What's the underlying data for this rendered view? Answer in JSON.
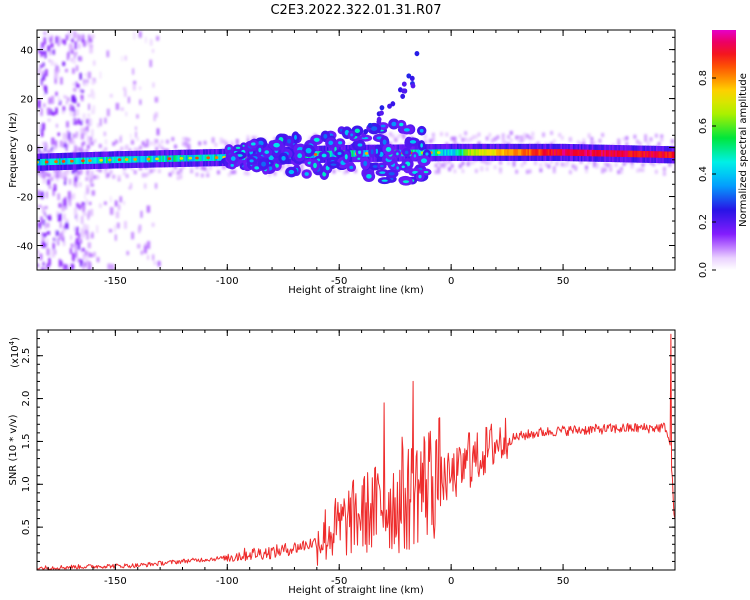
{
  "title": "C2E3.2022.322.01.31.R07",
  "colors": {
    "snr_line": "#ee2b2b",
    "background": "#ffffff"
  },
  "chart_data": [
    {
      "type": "heatmap",
      "xlabel": "Height of straight line (km)",
      "ylabel": "Frequency (Hz)",
      "xlim": [
        -185,
        100
      ],
      "ylim": [
        -50,
        48
      ],
      "xticks": [
        -150,
        -100,
        -50,
        0,
        50
      ],
      "yticks": [
        -40,
        -20,
        0,
        20,
        40
      ],
      "colorbar": {
        "label": "Normalized spectral amplitude",
        "range": [
          0.0,
          1.0
        ],
        "ticks": [
          0.0,
          0.2,
          0.4,
          0.6,
          0.8
        ],
        "colormap": "rainbow (white-purple-blue-cyan-green-yellow-red-magenta)"
      },
      "features": {
        "main_track": {
          "x": [
            -185,
            -150,
            -100,
            -50,
            0,
            50,
            100
          ],
          "y": [
            -6,
            -5,
            -4,
            -2.5,
            -2,
            -2,
            -3
          ],
          "amplitude": [
            0.4,
            0.4,
            0.4,
            0.4,
            0.6,
            0.95,
            0.9
          ]
        },
        "scatter_region_x": [
          -100,
          -10
        ],
        "low_height_noise_x": [
          -185,
          -130
        ]
      }
    },
    {
      "type": "line",
      "xlabel": "Height of straight line (km)",
      "ylabel": "SNR (10 * v/v)",
      "yscale_label": "(x10",
      "yscale_exponent": "4",
      "xlim": [
        -185,
        100
      ],
      "ylim": [
        0,
        2.8
      ],
      "xticks": [
        -150,
        -100,
        -50,
        0,
        50
      ],
      "yticks": [
        0.5,
        1.0,
        1.5,
        2.0,
        2.5
      ],
      "ytick_labels": [
        "0.5",
        "1.0",
        "1.5",
        "2.0",
        "2.5"
      ],
      "series": [
        {
          "x": [
            -185,
            -160,
            -140,
            -120,
            -110,
            -100,
            -90,
            -80,
            -70,
            -60,
            -55,
            -50,
            -45,
            -40,
            -35,
            -30,
            -25,
            -20,
            -17,
            -15,
            -10,
            -5,
            0,
            5,
            10,
            15,
            20,
            25,
            30,
            40,
            50,
            60,
            70,
            80,
            90,
            96,
            98,
            100
          ],
          "y": [
            0.02,
            0.04,
            0.05,
            0.1,
            0.12,
            0.14,
            0.18,
            0.2,
            0.25,
            0.32,
            0.4,
            0.45,
            0.55,
            0.6,
            0.65,
            0.7,
            0.72,
            0.75,
            0.85,
            0.9,
            0.95,
            1.0,
            1.05,
            1.15,
            1.25,
            1.35,
            1.45,
            1.5,
            1.55,
            1.6,
            1.62,
            1.63,
            1.64,
            1.65,
            1.65,
            1.66,
            1.4,
            0.5
          ],
          "spikes": [
            {
              "x": -17,
              "y": 2.2
            },
            {
              "x": -30,
              "y": 1.95
            },
            {
              "x": -10,
              "y": 1.6
            },
            {
              "x": -22,
              "y": 1.55
            },
            {
              "x": -7,
              "y": 1.5
            },
            {
              "x": 8,
              "y": 1.6
            },
            {
              "x": 98,
              "y": 2.75
            }
          ]
        }
      ]
    }
  ]
}
